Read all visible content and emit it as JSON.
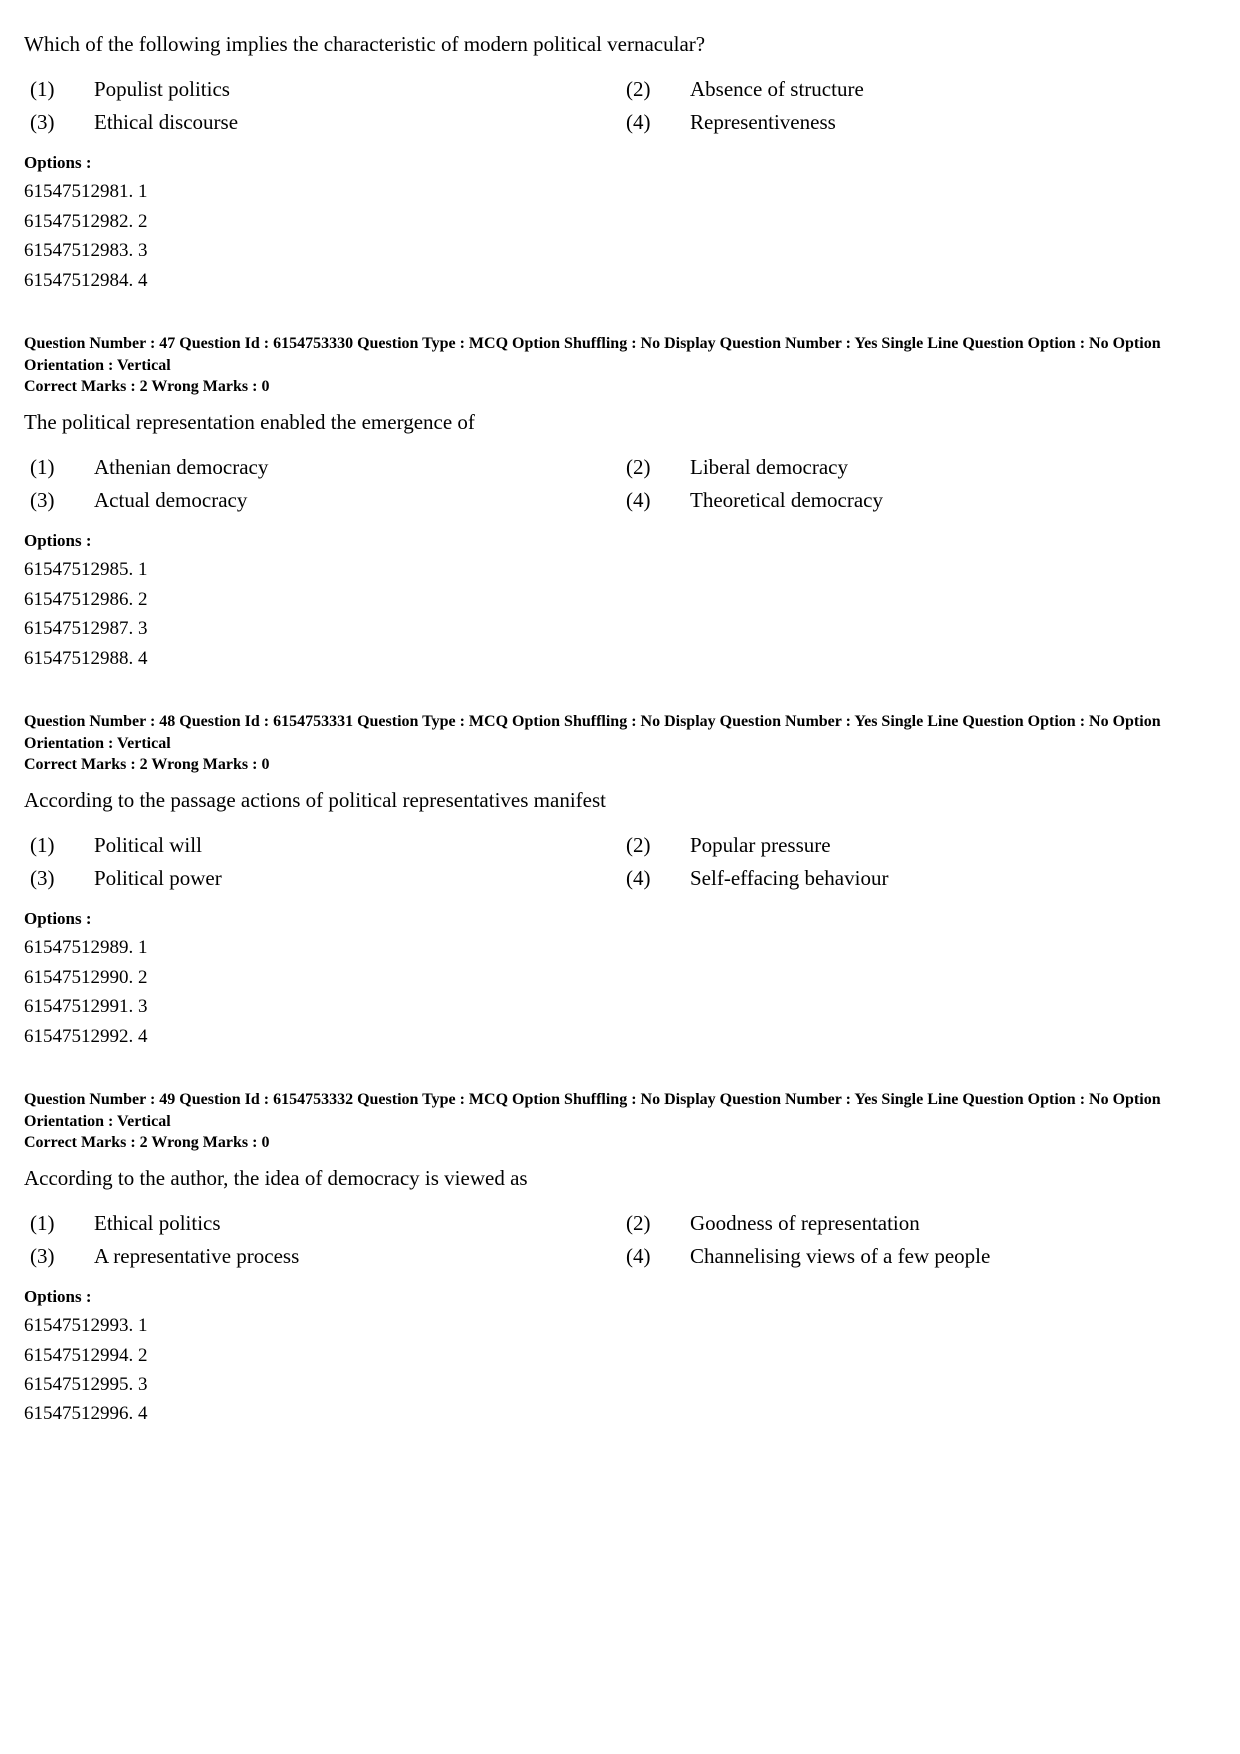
{
  "q46": {
    "text": "Which of the following implies the characteristic of modern political vernacular?",
    "a1_num": "(1)",
    "a1_text": "Populist politics",
    "a2_num": "(2)",
    "a2_text": "Absence of structure",
    "a3_num": "(3)",
    "a3_text": "Ethical discourse",
    "a4_num": "(4)",
    "a4_text": "Representiveness",
    "options_label": "Options :",
    "opt1": "61547512981. 1",
    "opt2": "61547512982. 2",
    "opt3": "61547512983. 3",
    "opt4": "61547512984. 4"
  },
  "q47": {
    "meta_line1": "Question Number : 47  Question Id : 6154753330  Question Type : MCQ  Option Shuffling : No  Display Question Number : Yes  Single Line Question Option : No  Option Orientation : Vertical",
    "meta_line2": "Correct Marks : 2  Wrong Marks : 0",
    "text": "The political representation enabled the emergence of",
    "a1_num": "(1)",
    "a1_text": "Athenian democracy",
    "a2_num": "(2)",
    "a2_text": "Liberal democracy",
    "a3_num": "(3)",
    "a3_text": "Actual democracy",
    "a4_num": "(4)",
    "a4_text": "Theoretical democracy",
    "options_label": "Options :",
    "opt1": "61547512985. 1",
    "opt2": "61547512986. 2",
    "opt3": "61547512987. 3",
    "opt4": "61547512988. 4"
  },
  "q48": {
    "meta_line1": "Question Number : 48  Question Id : 6154753331  Question Type : MCQ  Option Shuffling : No  Display Question Number : Yes  Single Line Question Option : No  Option Orientation : Vertical",
    "meta_line2": "Correct Marks : 2  Wrong Marks : 0",
    "text": "According to the passage actions of political representatives manifest",
    "a1_num": "(1)",
    "a1_text": "Political will",
    "a2_num": "(2)",
    "a2_text": "Popular pressure",
    "a3_num": "(3)",
    "a3_text": "Political power",
    "a4_num": "(4)",
    "a4_text": "Self-effacing behaviour",
    "options_label": "Options :",
    "opt1": "61547512989. 1",
    "opt2": "61547512990. 2",
    "opt3": "61547512991. 3",
    "opt4": "61547512992. 4"
  },
  "q49": {
    "meta_line1": "Question Number : 49  Question Id : 6154753332  Question Type : MCQ  Option Shuffling : No  Display Question Number : Yes  Single Line Question Option : No  Option Orientation : Vertical",
    "meta_line2": "Correct Marks : 2  Wrong Marks : 0",
    "text": "According to the author, the idea of democracy is viewed as",
    "a1_num": "(1)",
    "a1_text": "Ethical politics",
    "a2_num": "(2)",
    "a2_text": "Goodness of representation",
    "a3_num": "(3)",
    "a3_text": "A representative process",
    "a4_num": "(4)",
    "a4_text": "Channelising views of a few people",
    "options_label": "Options :",
    "opt1": "61547512993. 1",
    "opt2": "61547512994. 2",
    "opt3": "61547512995. 3",
    "opt4": "61547512996. 4"
  }
}
